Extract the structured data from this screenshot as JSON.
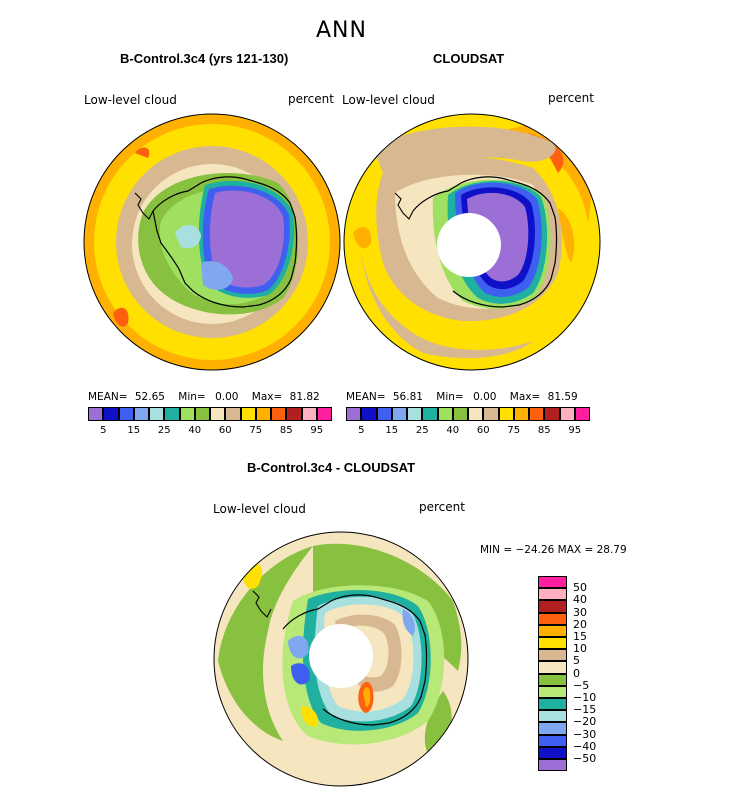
{
  "figure": {
    "season": "ANN"
  },
  "panels": [
    {
      "title": "B-Control.3c4 (yrs 121-130)",
      "variable": "Low-level cloud",
      "units": "percent",
      "stats": {
        "mean_label": "MEAN=",
        "mean": "52.65",
        "min_label": "Min=",
        "min": "0.00",
        "max_label": "Max=",
        "max": "81.82"
      },
      "colorbar_ticks": [
        "5",
        "15",
        "25",
        "40",
        "60",
        "75",
        "85",
        "95"
      ]
    },
    {
      "title": "CLOUDSAT",
      "variable": "Low-level cloud",
      "units": "percent",
      "stats": {
        "mean_label": "MEAN=",
        "mean": "56.81",
        "min_label": "Min=",
        "min": "0.00",
        "max_label": "Max=",
        "max": "81.59"
      },
      "colorbar_ticks": [
        "5",
        "15",
        "25",
        "40",
        "60",
        "75",
        "85",
        "95"
      ]
    }
  ],
  "difference": {
    "title": "B-Control.3c4 - CLOUDSAT",
    "variable": "Low-level cloud",
    "units": "percent",
    "minmax_label": "MIN = −24.26  MAX =   28.79",
    "colorbar_ticks": [
      "50",
      "40",
      "30",
      "20",
      "15",
      "10",
      "5",
      "0",
      "−5",
      "−10",
      "−15",
      "−20",
      "−30",
      "−40",
      "−50"
    ]
  },
  "palette": {
    "abs": [
      "#9b6fd6",
      "#1010c8",
      "#3f5ff0",
      "#7fa8f0",
      "#a8e0e0",
      "#20b0a0",
      "#a0e060",
      "#88c040",
      "#f5e6c0",
      "#d8b890",
      "#ffe000",
      "#ffb000",
      "#ff6010",
      "#b02020",
      "#ffb0c0",
      "#ff20a0"
    ],
    "diff": [
      "#ff20a0",
      "#ffb0c0",
      "#b02020",
      "#ff6010",
      "#ffb000",
      "#ffe000",
      "#d8b890",
      "#f5e6c0",
      "#88c040",
      "#b8e878",
      "#20b0a0",
      "#a8e0e0",
      "#7fa8f0",
      "#3f5ff0",
      "#1010c8",
      "#9b6fd6"
    ]
  }
}
